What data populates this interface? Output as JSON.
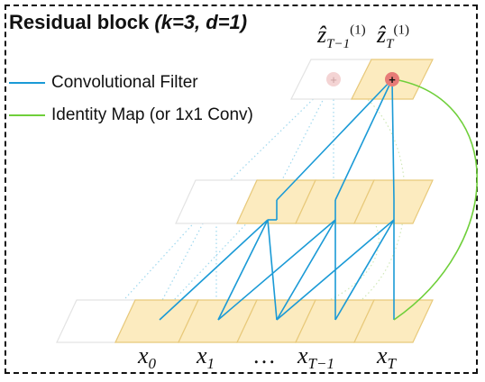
{
  "title": {
    "main": "Residual block",
    "params": "(k=3, d=1)"
  },
  "legend": {
    "conv": {
      "label": "Convolutional Filter",
      "color": "#1a9ad6"
    },
    "identity": {
      "label": "Identity Map (or 1x1 Conv)",
      "color": "#6fcf3a"
    }
  },
  "outputs": [
    {
      "base": "ẑ",
      "sub": "T−1",
      "sup": "(1)"
    },
    {
      "base": "ẑ",
      "sub": "T",
      "sup": "(1)"
    }
  ],
  "inputs": [
    {
      "base": "x",
      "sub": "0"
    },
    {
      "base": "x",
      "sub": "1"
    },
    {
      "base": "…",
      "sub": ""
    },
    {
      "base": "x",
      "sub": "T−1"
    },
    {
      "base": "x",
      "sub": "T"
    }
  ],
  "colors": {
    "cell_fill": "#fcebbf",
    "cell_stroke": "#e8c97a",
    "node_active": "#e77b77",
    "node_faded": "#f4d4d4"
  }
}
